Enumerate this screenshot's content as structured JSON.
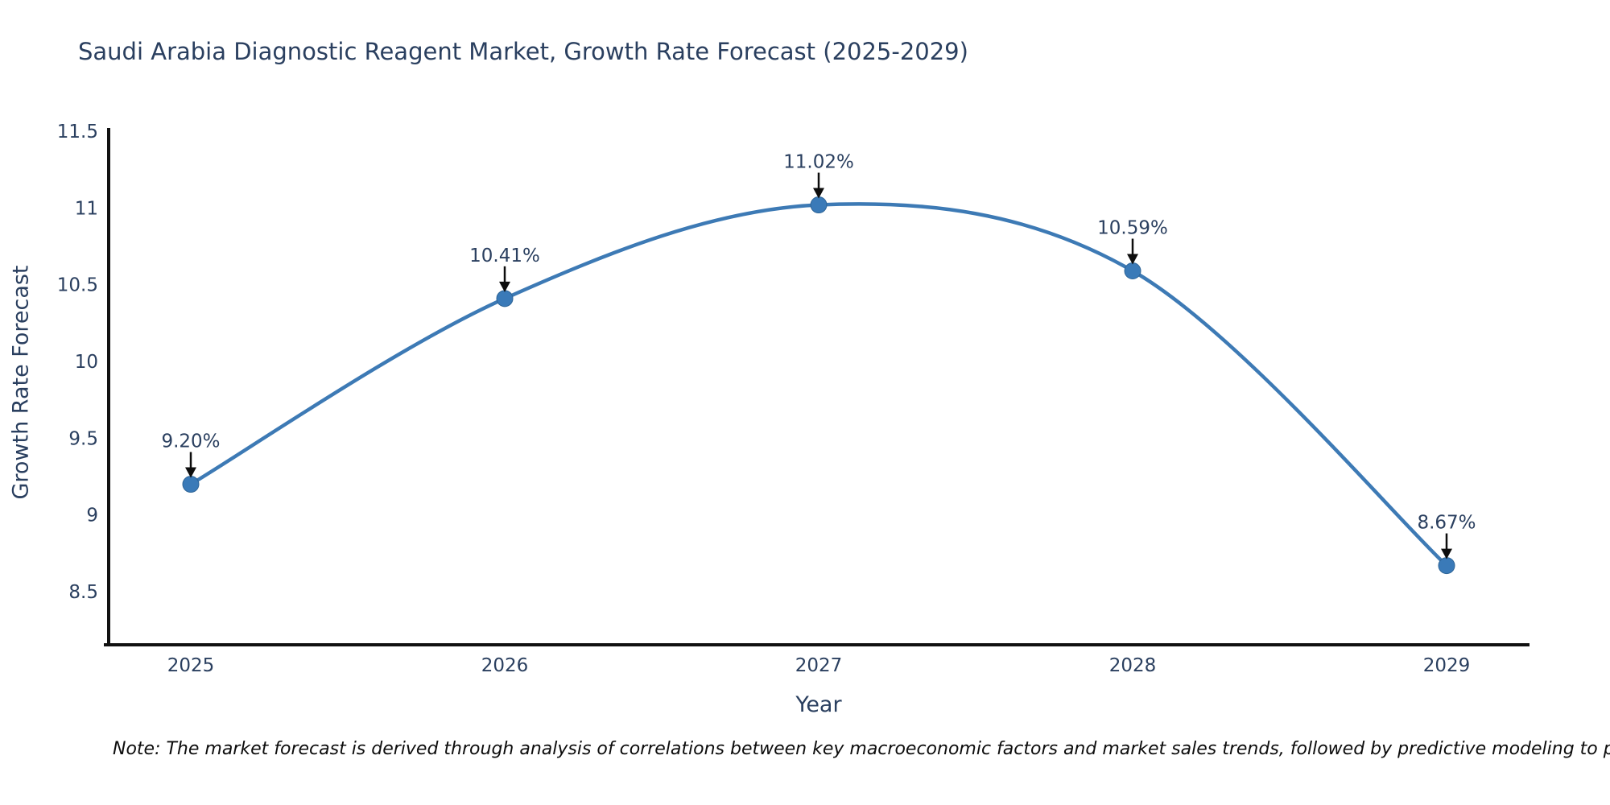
{
  "title": "Saudi Arabia Diagnostic Reagent Market, Growth Rate Forecast (2025-2029)",
  "note": "Note: The market forecast is derived through analysis of correlations between key macroeconomic factors and market sales trends, followed by predictive modeling to project future sal",
  "chart_data": {
    "type": "line",
    "title": "Saudi Arabia Diagnostic Reagent Market, Growth Rate Forecast (2025-2029)",
    "xlabel": "Year",
    "ylabel": "Growth Rate Forecast",
    "categories": [
      "2025",
      "2026",
      "2027",
      "2028",
      "2029"
    ],
    "values": [
      9.2,
      10.41,
      11.02,
      10.59,
      8.67
    ],
    "point_labels": [
      "9.20%",
      "10.41%",
      "11.02%",
      "10.59%",
      "8.67%"
    ],
    "yticks": [
      8.5,
      9,
      9.5,
      10,
      10.5,
      11,
      11.5
    ],
    "ytick_labels": [
      "8.5",
      "9",
      "9.5",
      "10",
      "10.5",
      "11",
      "11.5"
    ],
    "ylim": [
      8.16,
      11.52
    ],
    "line_shape": "spline",
    "grid": false,
    "legend": "none",
    "line_color": "#3d7ab5",
    "marker_color": "#3a7ab8",
    "marker_edge_color": "#2e6496",
    "axis_color": "#111111",
    "text_color": "#2a3f5f",
    "annotation_arrow_color": "#0d0d0d"
  }
}
